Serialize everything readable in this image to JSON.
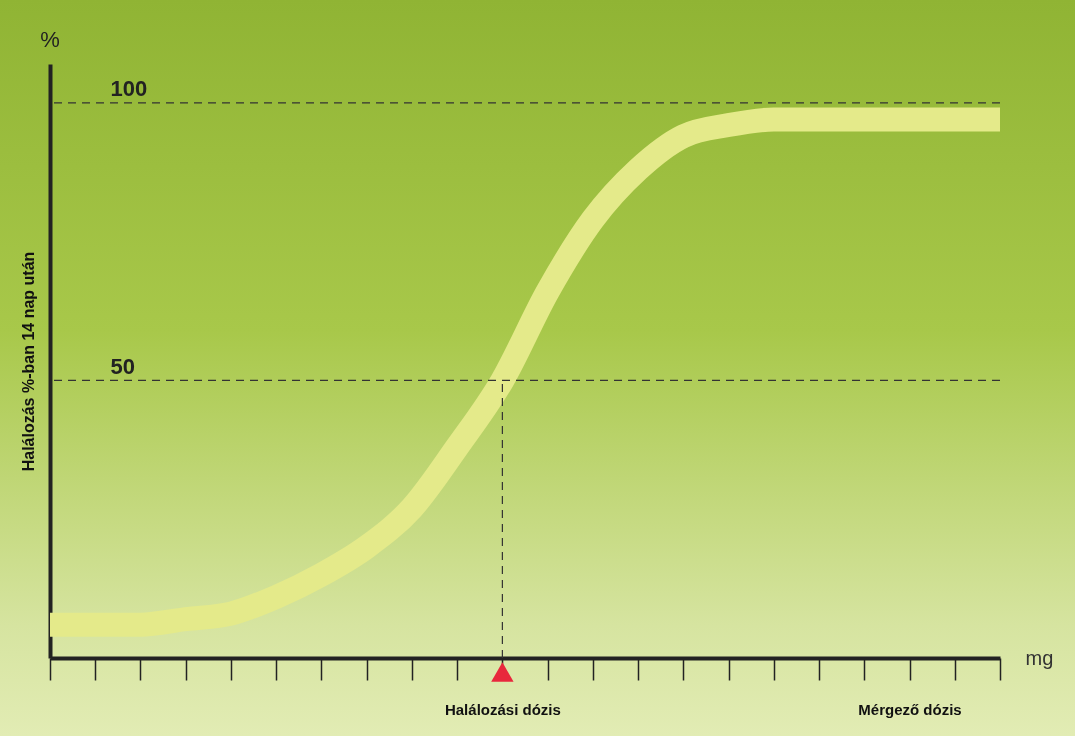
{
  "chart_data": {
    "type": "line",
    "ylabel": "Halálozás %-ban 14 nap után",
    "xlabel": "mg",
    "categories": [
      null,
      null,
      null,
      null,
      null,
      null,
      null,
      null,
      null,
      null,
      "Halálozási dózis",
      null,
      null,
      null,
      null,
      null,
      null,
      null,
      null,
      "Mérgező dózis",
      null,
      null
    ],
    "series": [
      {
        "color": "#e4ea8a",
        "values": [
          6,
          6,
          6,
          7,
          8,
          11,
          15,
          20,
          27,
          38,
          50,
          66,
          79,
          88,
          94,
          96,
          97,
          97,
          97,
          97,
          97,
          97
        ]
      }
    ],
    "ylim": [
      0,
      107
    ],
    "yticks": [
      50,
      100
    ],
    "grid": false,
    "ref_lines": [
      {
        "axis": "y",
        "value": 100,
        "line_style": "dashed"
      },
      {
        "axis": "y",
        "value": 50,
        "line_style": "dashed"
      },
      {
        "axis": "x",
        "value": "Halálozási dózis",
        "line_style": "dashed"
      }
    ],
    "annotations": [
      "%"
    ]
  }
}
